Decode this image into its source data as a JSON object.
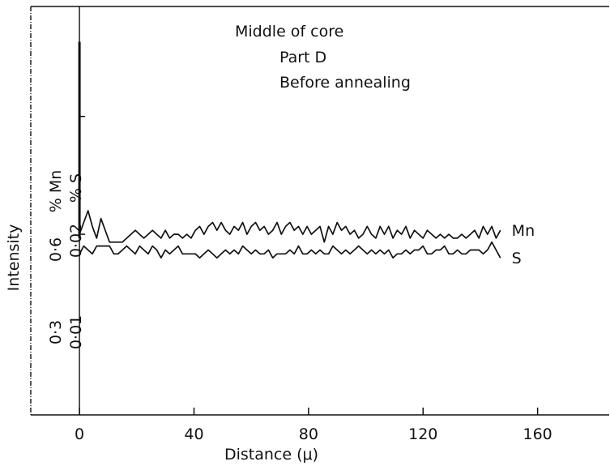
{
  "chart_data": {
    "type": "line",
    "annotations": [
      "Middle of core",
      "Part D",
      "Before annealing"
    ],
    "xlabel": "Distance (μ)",
    "ylabel": "Intensity",
    "ylabel_scale_mn": [
      "0·3",
      "0·6",
      "% Mn"
    ],
    "ylabel_scale_s": [
      "0·01",
      "0·02",
      "% S"
    ],
    "xlim": [
      -17,
      185
    ],
    "ylim": [
      -0.16,
      0.88
    ],
    "x_ticks": [
      0,
      40,
      80,
      120,
      160
    ],
    "x_tick_labels": [
      "0",
      "40",
      "80",
      "120",
      "160"
    ],
    "y_ticks": [
      0.3,
      0.6
    ],
    "spike": {
      "x": 0,
      "ymin": 0.29,
      "ymax": 0.79
    },
    "series": [
      {
        "name": "Mn",
        "x": [
          0,
          1.5,
          3,
          4.5,
          6,
          7.5,
          9,
          10.5,
          12,
          13.5,
          15,
          16.5,
          18,
          19.5,
          21,
          22.5,
          24,
          25.5,
          27,
          28.5,
          30,
          31.5,
          33,
          34.5,
          36,
          37.5,
          39,
          40.5,
          42,
          43.5,
          45,
          46.5,
          48,
          49.5,
          51,
          52.5,
          54,
          55.5,
          57,
          58.5,
          60,
          61.5,
          63,
          64.5,
          66,
          67.5,
          69,
          70.5,
          72,
          73.5,
          75,
          76.5,
          78,
          79.5,
          81,
          82.5,
          84,
          85.5,
          87,
          88.5,
          90,
          91.5,
          93,
          94.5,
          96,
          97.5,
          99,
          100.5,
          102,
          103.5,
          105,
          106.5,
          108,
          109.5,
          111,
          112.5,
          114,
          115.5,
          117,
          118.5,
          120,
          121.5,
          123,
          124.5,
          126,
          127.5,
          129,
          130.5,
          132,
          133.5,
          135,
          136.5,
          138,
          139.5,
          141,
          142.5,
          144,
          145.5,
          147
        ],
        "values": [
          0.3,
          0.33,
          0.36,
          0.32,
          0.29,
          0.34,
          0.31,
          0.28,
          0.28,
          0.28,
          0.28,
          0.29,
          0.3,
          0.31,
          0.3,
          0.29,
          0.3,
          0.31,
          0.3,
          0.29,
          0.31,
          0.29,
          0.3,
          0.3,
          0.29,
          0.3,
          0.29,
          0.31,
          0.32,
          0.3,
          0.32,
          0.33,
          0.31,
          0.33,
          0.31,
          0.3,
          0.32,
          0.31,
          0.33,
          0.3,
          0.32,
          0.33,
          0.31,
          0.32,
          0.3,
          0.31,
          0.33,
          0.3,
          0.32,
          0.33,
          0.31,
          0.32,
          0.3,
          0.32,
          0.3,
          0.31,
          0.32,
          0.28,
          0.32,
          0.3,
          0.33,
          0.31,
          0.32,
          0.3,
          0.31,
          0.29,
          0.3,
          0.32,
          0.3,
          0.29,
          0.32,
          0.3,
          0.32,
          0.29,
          0.31,
          0.3,
          0.32,
          0.29,
          0.31,
          0.3,
          0.29,
          0.31,
          0.3,
          0.29,
          0.3,
          0.29,
          0.3,
          0.29,
          0.29,
          0.3,
          0.29,
          0.3,
          0.31,
          0.29,
          0.32,
          0.3,
          0.32,
          0.29,
          0.31
        ]
      },
      {
        "name": "S",
        "x": [
          0,
          1.5,
          3,
          4.5,
          6,
          7.5,
          9,
          10.5,
          12,
          13.5,
          15,
          16.5,
          18,
          19.5,
          21,
          22.5,
          24,
          25.5,
          27,
          28.5,
          30,
          31.5,
          33,
          34.5,
          36,
          37.5,
          39,
          40.5,
          42,
          43.5,
          45,
          46.5,
          48,
          49.5,
          51,
          52.5,
          54,
          55.5,
          57,
          58.5,
          60,
          61.5,
          63,
          64.5,
          66,
          67.5,
          69,
          70.5,
          72,
          73.5,
          75,
          76.5,
          78,
          79.5,
          81,
          82.5,
          84,
          85.5,
          87,
          88.5,
          90,
          91.5,
          93,
          94.5,
          96,
          97.5,
          99,
          100.5,
          102,
          103.5,
          105,
          106.5,
          108,
          109.5,
          111,
          112.5,
          114,
          115.5,
          117,
          118.5,
          120,
          121.5,
          123,
          124.5,
          126,
          127.5,
          129,
          130.5,
          132,
          133.5,
          135,
          136.5,
          138,
          139.5,
          141,
          142.5,
          144,
          145.5,
          147
        ],
        "values": [
          0.25,
          0.27,
          0.26,
          0.25,
          0.27,
          0.27,
          0.27,
          0.27,
          0.25,
          0.25,
          0.26,
          0.27,
          0.26,
          0.25,
          0.27,
          0.26,
          0.25,
          0.27,
          0.26,
          0.24,
          0.26,
          0.25,
          0.26,
          0.27,
          0.25,
          0.25,
          0.25,
          0.25,
          0.24,
          0.25,
          0.26,
          0.25,
          0.24,
          0.25,
          0.26,
          0.25,
          0.26,
          0.25,
          0.27,
          0.26,
          0.25,
          0.26,
          0.25,
          0.25,
          0.26,
          0.24,
          0.25,
          0.25,
          0.25,
          0.26,
          0.25,
          0.27,
          0.25,
          0.25,
          0.26,
          0.25,
          0.26,
          0.25,
          0.25,
          0.27,
          0.26,
          0.25,
          0.26,
          0.25,
          0.26,
          0.27,
          0.26,
          0.25,
          0.26,
          0.25,
          0.26,
          0.25,
          0.26,
          0.24,
          0.25,
          0.25,
          0.26,
          0.25,
          0.26,
          0.26,
          0.27,
          0.25,
          0.25,
          0.26,
          0.26,
          0.27,
          0.25,
          0.25,
          0.26,
          0.25,
          0.25,
          0.26,
          0.26,
          0.26,
          0.25,
          0.26,
          0.28,
          0.26,
          0.24
        ]
      }
    ],
    "series_label_text": [
      "Mn",
      "S"
    ],
    "grid": false,
    "legend": "inline-right"
  }
}
